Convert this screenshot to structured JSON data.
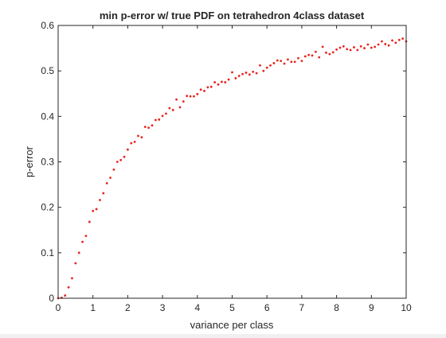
{
  "chart_data": {
    "type": "scatter",
    "title": "min p-error w/ true PDF on tetrahedron 4class dataset",
    "xlabel": "variance per class",
    "ylabel": "p-error",
    "xlim": [
      0,
      10
    ],
    "ylim": [
      0,
      0.6
    ],
    "xticks": [
      0,
      1,
      2,
      3,
      4,
      5,
      6,
      7,
      8,
      9,
      10
    ],
    "yticks": [
      0,
      0.1,
      0.2,
      0.3,
      0.4,
      0.5,
      0.6
    ],
    "xtick_labels": [
      "0",
      "1",
      "2",
      "3",
      "4",
      "5",
      "6",
      "7",
      "8",
      "9",
      "10"
    ],
    "ytick_labels": [
      "0",
      "0.1",
      "0.2",
      "0.3",
      "0.4",
      "0.5",
      "0.6"
    ],
    "grid": false,
    "marker_color": "#e8231c",
    "series": [
      {
        "x": [
          0.0,
          0.1,
          0.2,
          0.3,
          0.4,
          0.5,
          0.6,
          0.7,
          0.8,
          0.9,
          1.0,
          1.1,
          1.2,
          1.3,
          1.4,
          1.5,
          1.6,
          1.7,
          1.8,
          1.9,
          2.0,
          2.1,
          2.2,
          2.3,
          2.4,
          2.5,
          2.6,
          2.7,
          2.8,
          2.9,
          3.0,
          3.1,
          3.2,
          3.3,
          3.4,
          3.5,
          3.6,
          3.7,
          3.8,
          3.9,
          4.0,
          4.1,
          4.2,
          4.3,
          4.4,
          4.5,
          4.6,
          4.7,
          4.8,
          4.9,
          5.0,
          5.1,
          5.2,
          5.3,
          5.4,
          5.5,
          5.6,
          5.7,
          5.8,
          5.9,
          6.0,
          6.1,
          6.2,
          6.3,
          6.4,
          6.5,
          6.6,
          6.7,
          6.8,
          6.9,
          7.0,
          7.1,
          7.2,
          7.3,
          7.4,
          7.5,
          7.6,
          7.7,
          7.8,
          7.9,
          8.0,
          8.1,
          8.2,
          8.3,
          8.4,
          8.5,
          8.6,
          8.7,
          8.8,
          8.9,
          9.0,
          9.1,
          9.2,
          9.3,
          9.4,
          9.5,
          9.6,
          9.7,
          9.8,
          9.9,
          10.0
        ],
        "y": [
          0.0,
          0.001,
          0.006,
          0.024,
          0.044,
          0.077,
          0.1,
          0.124,
          0.137,
          0.168,
          0.192,
          0.196,
          0.216,
          0.231,
          0.253,
          0.265,
          0.283,
          0.3,
          0.304,
          0.311,
          0.327,
          0.341,
          0.344,
          0.357,
          0.354,
          0.377,
          0.375,
          0.38,
          0.392,
          0.393,
          0.401,
          0.406,
          0.418,
          0.414,
          0.437,
          0.42,
          0.433,
          0.445,
          0.444,
          0.444,
          0.449,
          0.459,
          0.456,
          0.464,
          0.465,
          0.475,
          0.47,
          0.476,
          0.475,
          0.481,
          0.497,
          0.484,
          0.489,
          0.493,
          0.496,
          0.492,
          0.498,
          0.495,
          0.512,
          0.5,
          0.507,
          0.512,
          0.517,
          0.523,
          0.522,
          0.516,
          0.525,
          0.52,
          0.52,
          0.528,
          0.522,
          0.532,
          0.535,
          0.534,
          0.542,
          0.53,
          0.553,
          0.54,
          0.537,
          0.541,
          0.547,
          0.551,
          0.554,
          0.548,
          0.546,
          0.552,
          0.546,
          0.554,
          0.55,
          0.558,
          0.551,
          0.553,
          0.558,
          0.565,
          0.559,
          0.556,
          0.567,
          0.562,
          0.568,
          0.571,
          0.565
        ]
      }
    ]
  }
}
